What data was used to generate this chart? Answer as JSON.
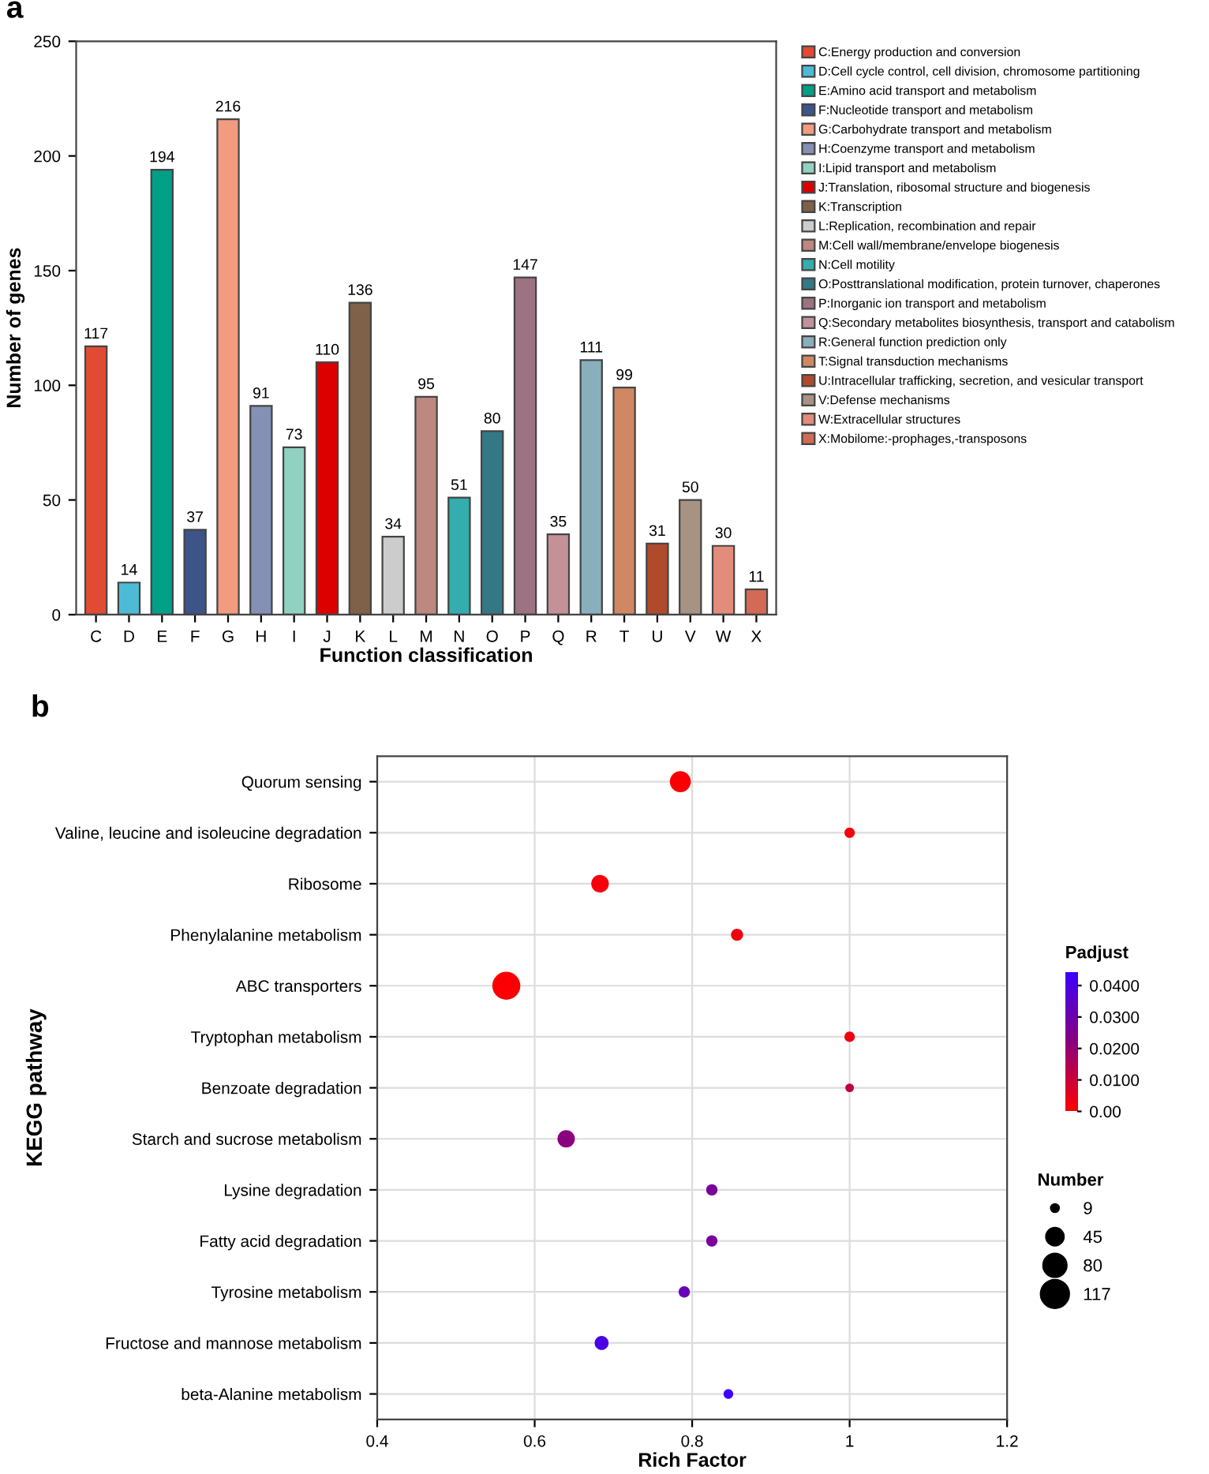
{
  "chart_data": [
    {
      "type": "bar",
      "title": "a",
      "xlabel": "Function classification",
      "ylabel": "Number of genes",
      "categories": [
        "C",
        "D",
        "E",
        "F",
        "G",
        "H",
        "I",
        "J",
        "K",
        "L",
        "M",
        "N",
        "O",
        "P",
        "Q",
        "R",
        "T",
        "U",
        "V",
        "W",
        "X"
      ],
      "data_labels": true,
      "legend": "right",
      "grid": false,
      "ylim": [
        0,
        250
      ],
      "yticks": [
        0,
        50,
        100,
        150,
        200,
        250
      ],
      "series": [
        {
          "name": "C:Energy production and conversion",
          "color": "#e34a33",
          "values": [
            117,
            null,
            null,
            null,
            null,
            null,
            null,
            null,
            null,
            null,
            null,
            null,
            null,
            null,
            null,
            null,
            null,
            null,
            null,
            null,
            null
          ]
        },
        {
          "name": "D:Cell cycle control, cell division, chromosome partitioning",
          "color": "#4dbbd5",
          "values": [
            null,
            14,
            null,
            null,
            null,
            null,
            null,
            null,
            null,
            null,
            null,
            null,
            null,
            null,
            null,
            null,
            null,
            null,
            null,
            null,
            null
          ]
        },
        {
          "name": "E:Amino acid transport and metabolism",
          "color": "#00a087",
          "values": [
            null,
            null,
            194,
            null,
            null,
            null,
            null,
            null,
            null,
            null,
            null,
            null,
            null,
            null,
            null,
            null,
            null,
            null,
            null,
            null,
            null
          ]
        },
        {
          "name": "F:Nucleotide transport and metabolism",
          "color": "#3c5488",
          "values": [
            null,
            null,
            null,
            37,
            null,
            null,
            null,
            null,
            null,
            null,
            null,
            null,
            null,
            null,
            null,
            null,
            null,
            null,
            null,
            null,
            null
          ]
        },
        {
          "name": "G:Carbohydrate transport and metabolism",
          "color": "#f39b7f",
          "values": [
            null,
            null,
            null,
            null,
            216,
            null,
            null,
            null,
            null,
            null,
            null,
            null,
            null,
            null,
            null,
            null,
            null,
            null,
            null,
            null,
            null
          ]
        },
        {
          "name": "H:Coenzyme transport and metabolism",
          "color": "#8491b4",
          "values": [
            null,
            null,
            null,
            null,
            null,
            91,
            null,
            null,
            null,
            null,
            null,
            null,
            null,
            null,
            null,
            null,
            null,
            null,
            null,
            null,
            null
          ]
        },
        {
          "name": "I:Lipid transport and metabolism",
          "color": "#91d1c2",
          "values": [
            null,
            null,
            null,
            null,
            null,
            null,
            73,
            null,
            null,
            null,
            null,
            null,
            null,
            null,
            null,
            null,
            null,
            null,
            null,
            null,
            null
          ]
        },
        {
          "name": "J:Translation, ribosomal structure and biogenesis",
          "color": "#dc0000",
          "values": [
            null,
            null,
            null,
            null,
            null,
            null,
            null,
            110,
            null,
            null,
            null,
            null,
            null,
            null,
            null,
            null,
            null,
            null,
            null,
            null,
            null
          ]
        },
        {
          "name": "K:Transcription",
          "color": "#7e6148",
          "values": [
            null,
            null,
            null,
            null,
            null,
            null,
            null,
            null,
            136,
            null,
            null,
            null,
            null,
            null,
            null,
            null,
            null,
            null,
            null,
            null,
            null
          ]
        },
        {
          "name": "L:Replication, recombination and repair",
          "color": "#cccccc",
          "values": [
            null,
            null,
            null,
            null,
            null,
            null,
            null,
            null,
            null,
            34,
            null,
            null,
            null,
            null,
            null,
            null,
            null,
            null,
            null,
            null,
            null
          ]
        },
        {
          "name": "M:Cell wall/membrane/envelope biogenesis",
          "color": "#bd8880",
          "values": [
            null,
            null,
            null,
            null,
            null,
            null,
            null,
            null,
            null,
            null,
            95,
            null,
            null,
            null,
            null,
            null,
            null,
            null,
            null,
            null,
            null
          ]
        },
        {
          "name": "N:Cell motility",
          "color": "#33adad",
          "values": [
            null,
            null,
            null,
            null,
            null,
            null,
            null,
            null,
            null,
            null,
            null,
            51,
            null,
            null,
            null,
            null,
            null,
            null,
            null,
            null,
            null
          ]
        },
        {
          "name": "O:Posttranslational modification, protein turnover, chaperones",
          "color": "#347886",
          "values": [
            null,
            null,
            null,
            null,
            null,
            null,
            null,
            null,
            null,
            null,
            null,
            null,
            80,
            null,
            null,
            null,
            null,
            null,
            null,
            null,
            null
          ]
        },
        {
          "name": "P:Inorganic ion transport and metabolism",
          "color": "#9d7282",
          "values": [
            null,
            null,
            null,
            null,
            null,
            null,
            null,
            null,
            null,
            null,
            null,
            null,
            null,
            147,
            null,
            null,
            null,
            null,
            null,
            null,
            null
          ]
        },
        {
          "name": "Q:Secondary metabolites biosynthesis, transport and catabolism",
          "color": "#c39298",
          "values": [
            null,
            null,
            null,
            null,
            null,
            null,
            null,
            null,
            null,
            null,
            null,
            null,
            null,
            null,
            35,
            null,
            null,
            null,
            null,
            null,
            null
          ]
        },
        {
          "name": "R:General function prediction only",
          "color": "#8aafbc",
          "values": [
            null,
            null,
            null,
            null,
            null,
            null,
            null,
            null,
            null,
            null,
            null,
            null,
            null,
            null,
            null,
            111,
            null,
            null,
            null,
            null,
            null
          ]
        },
        {
          "name": "T:Signal transduction mechanisms",
          "color": "#d08862",
          "values": [
            null,
            null,
            null,
            null,
            null,
            null,
            null,
            null,
            null,
            null,
            null,
            null,
            null,
            null,
            null,
            null,
            99,
            null,
            null,
            null,
            null
          ]
        },
        {
          "name": "U:Intracellular trafficking, secretion, and vesicular transport",
          "color": "#b04a2c",
          "values": [
            null,
            null,
            null,
            null,
            null,
            null,
            null,
            null,
            null,
            null,
            null,
            null,
            null,
            null,
            null,
            null,
            null,
            31,
            null,
            null,
            null
          ]
        },
        {
          "name": "V:Defense mechanisms",
          "color": "#a69384",
          "values": [
            null,
            null,
            null,
            null,
            null,
            null,
            null,
            null,
            null,
            null,
            null,
            null,
            null,
            null,
            null,
            null,
            null,
            null,
            50,
            null,
            null
          ]
        },
        {
          "name": "W:Extracellular structures",
          "color": "#e38c7b",
          "values": [
            null,
            null,
            null,
            null,
            null,
            null,
            null,
            null,
            null,
            null,
            null,
            null,
            null,
            null,
            null,
            null,
            null,
            null,
            null,
            30,
            null
          ]
        },
        {
          "name": "X:Mobilome:-prophages,-transposons",
          "color": "#d26a55",
          "values": [
            null,
            null,
            null,
            null,
            null,
            null,
            null,
            null,
            null,
            null,
            null,
            null,
            null,
            null,
            null,
            null,
            null,
            null,
            null,
            null,
            11
          ]
        }
      ]
    },
    {
      "type": "bubble",
      "title": "b",
      "xlabel": "Rich Factor",
      "ylabel": "KEGG pathway",
      "orientation": "horizontal",
      "categories": [
        "Quorum sensing",
        "Valine, leucine and isoleucine degradation",
        "Ribosome",
        "Phenylalanine metabolism",
        "ABC transporters",
        "Tryptophan metabolism",
        "Benzoate degradation",
        "Starch and sucrose metabolism",
        "Lysine degradation",
        "Fatty acid degradation",
        "Tyrosine metabolism",
        "Fructose and mannose metabolism",
        "beta-Alanine metabolism"
      ],
      "values": [
        0.785,
        1.0,
        0.683,
        0.857,
        0.564,
        1.0,
        1.0,
        0.64,
        0.825,
        0.825,
        0.79,
        0.685,
        0.846
      ],
      "sizes": [
        66,
        16,
        46,
        22,
        117,
        16,
        11,
        45,
        19,
        19,
        19,
        29,
        14
      ],
      "cvalues": [
        0.001,
        0.002,
        0.002,
        0.003,
        0.001,
        0.003,
        0.012,
        0.022,
        0.027,
        0.027,
        0.032,
        0.04,
        0.044
      ],
      "clabel": "Padjust",
      "clim": [
        0,
        0.0445
      ],
      "cticks": [
        {
          "value": 0,
          "label": "0.00"
        },
        {
          "value": 0.01,
          "label": "0.0100"
        },
        {
          "value": 0.02,
          "label": "0.0200"
        },
        {
          "value": 0.03,
          "label": "0.0300"
        },
        {
          "value": 0.04,
          "label": "0.0400"
        }
      ],
      "legend_title": "Number",
      "size_legend": [
        9,
        45,
        80,
        117
      ],
      "grid": true,
      "xlim": [
        0.4,
        1.2
      ],
      "xticks": [
        0.4,
        0.6,
        0.8,
        1,
        1.2
      ]
    }
  ]
}
